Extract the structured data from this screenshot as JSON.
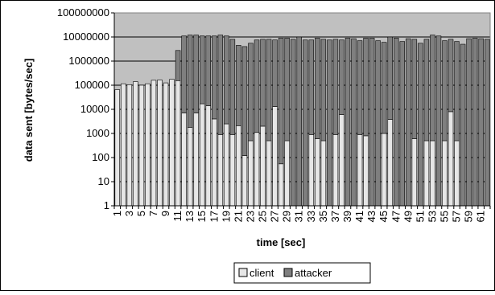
{
  "chart_data": {
    "type": "bar",
    "stacked": true,
    "title": "",
    "xlabel": "time [sec]",
    "ylabel": "data sent [bytes/sec]",
    "y_scale": "log",
    "ylim": [
      1,
      100000000
    ],
    "y_tick_labels": [
      "1",
      "10",
      "100",
      "1000",
      "10000",
      "100000",
      "1000000",
      "10000000",
      "100000000"
    ],
    "x": [
      1,
      2,
      3,
      4,
      5,
      6,
      7,
      8,
      9,
      10,
      11,
      12,
      13,
      14,
      15,
      16,
      17,
      18,
      19,
      20,
      21,
      22,
      23,
      24,
      25,
      26,
      27,
      28,
      29,
      30,
      31,
      32,
      33,
      34,
      35,
      36,
      37,
      38,
      39,
      40,
      41,
      42,
      43,
      44,
      45,
      46,
      47,
      48,
      49,
      50,
      51,
      52,
      53,
      54,
      55,
      56,
      57,
      58,
      59,
      60,
      61,
      62
    ],
    "x_tick_labels": [
      "1",
      "5",
      "9",
      "13",
      "17",
      "21",
      "25",
      "29",
      "33",
      "37",
      "41",
      "45",
      "49",
      "53",
      "57",
      "61"
    ],
    "x_tick_labels_secondary": [
      "3",
      "7",
      "11",
      "15",
      "19",
      "23",
      "27",
      "31",
      "35",
      "39",
      "43",
      "47",
      "51",
      "55",
      "59"
    ],
    "legend_position": "bottom",
    "grid": "horizontal major gridlines",
    "plot_background": "#c0c0c0",
    "series": [
      {
        "name": "client",
        "color": "#e6e6e6",
        "values": [
          65000,
          115000,
          105000,
          140000,
          100000,
          115000,
          160000,
          165000,
          125000,
          175000,
          155000,
          7000,
          1800,
          7000,
          17000,
          14000,
          4000,
          900,
          2500,
          900,
          2100,
          120,
          500,
          1100,
          2000,
          500,
          13000,
          55,
          500,
          0,
          0,
          0,
          900,
          600,
          500,
          0,
          900,
          6000,
          0,
          0,
          900,
          800,
          0,
          0,
          1000,
          3800,
          0,
          0,
          0,
          600,
          0,
          500,
          500,
          0,
          500,
          8000,
          500,
          0,
          0,
          0,
          0,
          0
        ]
      },
      {
        "name": "attacker",
        "color": "#7f7f7f",
        "values": [
          0,
          0,
          0,
          0,
          0,
          0,
          0,
          0,
          0,
          0,
          2600000,
          11000000,
          12000000,
          12000000,
          11000000,
          11000000,
          11000000,
          12000000,
          11000000,
          8000000,
          4500000,
          4000000,
          5500000,
          7500000,
          8000000,
          8000000,
          7500000,
          9000000,
          9000000,
          8000000,
          10000000,
          7500000,
          7500000,
          9000000,
          8000000,
          7500000,
          8000000,
          7500000,
          9000000,
          8500000,
          7000000,
          9000000,
          9000000,
          7000000,
          6000000,
          10000000,
          9000000,
          6500000,
          8500000,
          8000000,
          5500000,
          8000000,
          12000000,
          11000000,
          7000000,
          8000000,
          6500000,
          5000000,
          8500000,
          9000000,
          8500000,
          8000000
        ]
      }
    ]
  }
}
